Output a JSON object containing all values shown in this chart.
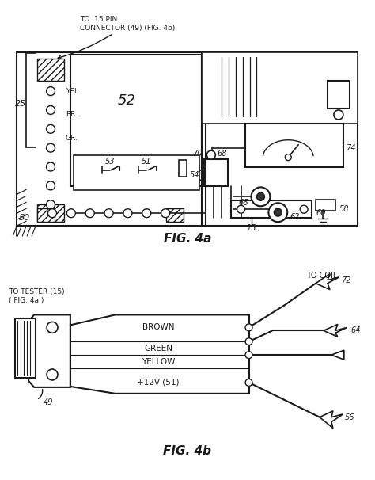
{
  "background_color": "#ffffff",
  "line_color": "#1a1a1a",
  "fig_width": 4.74,
  "fig_height": 6.06,
  "dpi": 100,
  "fig4a_label": "FIG. 4a",
  "fig4b_label": "FIG. 4b",
  "label_25": "25",
  "label_50": "50",
  "label_52": "52",
  "label_53": "53",
  "label_51": "51",
  "label_54": "54",
  "label_15": "15",
  "label_70": "70",
  "label_68": "68",
  "label_66": "66",
  "label_62": "62",
  "label_74": "74",
  "label_58": "58",
  "label_60": "60",
  "label_49": "49",
  "label_72": "72",
  "label_64": "64",
  "label_56": "56",
  "text_yel": "YEL.",
  "text_br": "BR.",
  "text_gr": "GR.",
  "text_connector": "TO  15 PIN\nCONNECTOR (49) (FIG. 4b)",
  "text_tester": "TO TESTER (15)\n( FIG. 4a )",
  "text_coil": "TO COIL",
  "text_brown": "BROWN",
  "text_green": "GREEN",
  "text_yellow": "YELLOW",
  "text_12v": "+12V (51)"
}
